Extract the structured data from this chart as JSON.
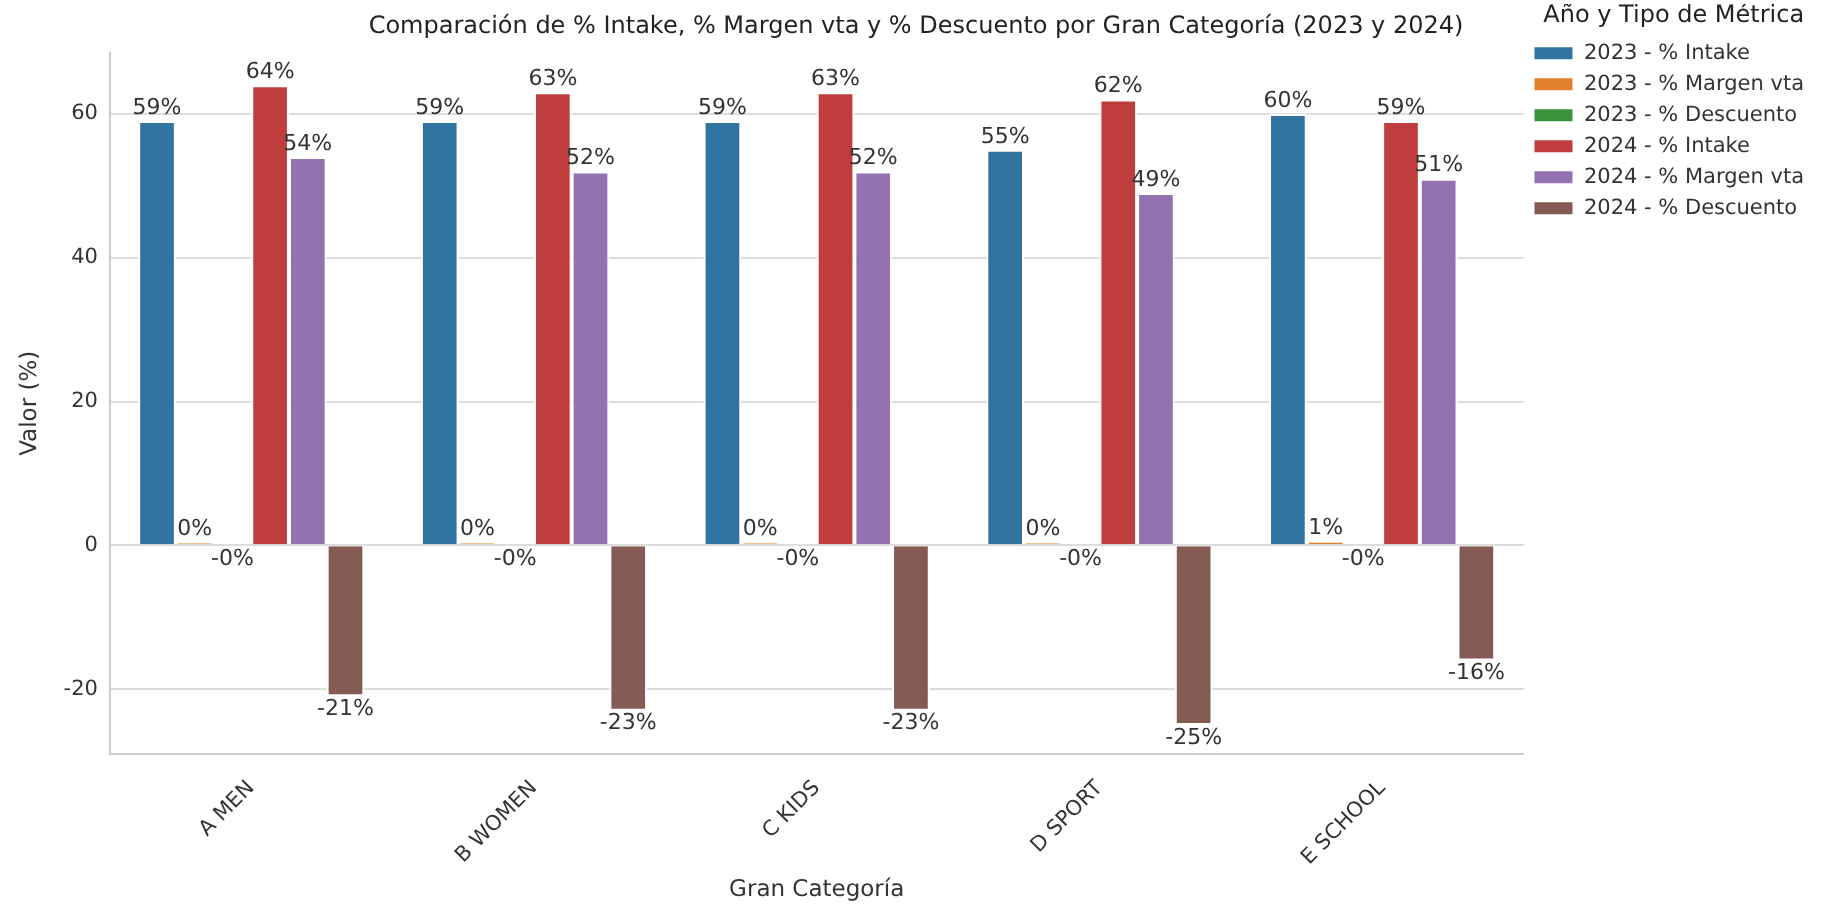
{
  "chart_data": {
    "type": "bar",
    "title": "Comparación de % Intake, % Margen vta y % Descuento por Gran Categoría (2023 y 2024)",
    "xlabel": "Gran Categoría",
    "ylabel": "Valor (%)",
    "legend_title": "Año y Tipo de Métrica",
    "categories": [
      "A MEN",
      "B WOMEN",
      "C KIDS",
      "D SPORT",
      "E SCHOOL"
    ],
    "series": [
      {
        "name": "2023 - % Intake",
        "color": "#3274a1",
        "values": [
          59,
          59,
          59,
          55,
          60
        ],
        "value_labels": [
          "59%",
          "59%",
          "59%",
          "55%",
          "60%"
        ]
      },
      {
        "name": "2023 - % Margen vta",
        "color": "#e1812c",
        "values": [
          0.4,
          0.4,
          0.4,
          0.4,
          0.6
        ],
        "value_labels": [
          "0%",
          "0%",
          "0%",
          "0%",
          "1%"
        ]
      },
      {
        "name": "2023 - % Descuento",
        "color": "#3a923a",
        "values": [
          -0.1,
          -0.1,
          -0.1,
          -0.1,
          -0.1
        ],
        "value_labels": [
          "-0%",
          "-0%",
          "-0%",
          "-0%",
          "-0%"
        ]
      },
      {
        "name": "2024 - % Intake",
        "color": "#c03d3e",
        "values": [
          64,
          63,
          63,
          62,
          59
        ],
        "value_labels": [
          "64%",
          "63%",
          "63%",
          "62%",
          "59%"
        ]
      },
      {
        "name": "2024 - % Margen vta",
        "color": "#9372b2",
        "values": [
          54,
          52,
          52,
          49,
          51
        ],
        "value_labels": [
          "54%",
          "52%",
          "52%",
          "49%",
          "51%"
        ]
      },
      {
        "name": "2024 - % Descuento",
        "color": "#845b53",
        "values": [
          -21,
          -23,
          -23,
          -25,
          -16
        ],
        "value_labels": [
          "-21%",
          "-23%",
          "-23%",
          "-25%",
          "-16%"
        ]
      }
    ],
    "ylim": [
      -29,
      68.5
    ],
    "yticks": [
      -20,
      0,
      20,
      40,
      60
    ],
    "grid": "y",
    "legend": "top right"
  }
}
